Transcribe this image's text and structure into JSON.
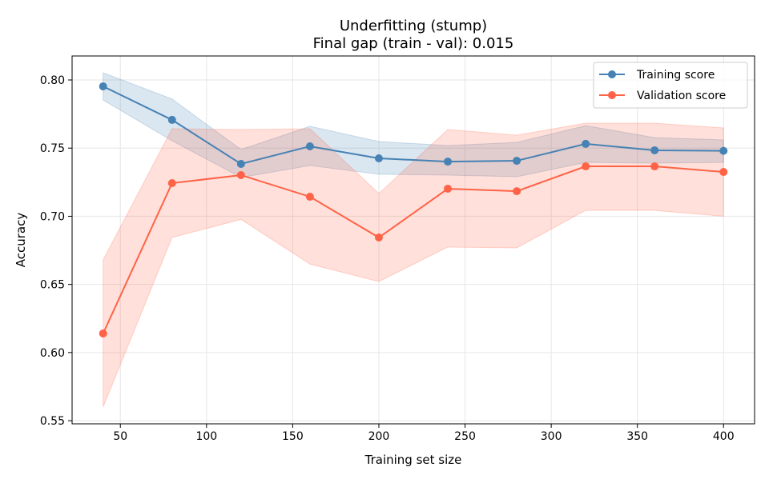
{
  "chart_data": {
    "type": "line",
    "title": "Underfitting (stump)",
    "subtitle": "Final gap (train - val): 0.015",
    "xlabel": "Training set size",
    "ylabel": "Accuracy",
    "xlim": [
      22,
      418
    ],
    "ylim": [
      0.5477,
      0.8176
    ],
    "xticks": [
      50,
      100,
      150,
      200,
      250,
      300,
      350,
      400
    ],
    "yticks": [
      0.55,
      0.6,
      0.65,
      0.7,
      0.75,
      0.8
    ],
    "ytick_labels": [
      "0.55",
      "0.60",
      "0.65",
      "0.70",
      "0.75",
      "0.80"
    ],
    "grid": true,
    "legend_placement": "top-right",
    "x": [
      40,
      80,
      120,
      160,
      200,
      240,
      280,
      320,
      360,
      400
    ],
    "series": [
      {
        "name": "Training score",
        "color": "#4682b4",
        "values": [
          0.7953,
          0.7707,
          0.7384,
          0.7513,
          0.7425,
          0.7401,
          0.7407,
          0.7531,
          0.7484,
          0.748
        ],
        "band_upper": [
          0.8053,
          0.786,
          0.749,
          0.766,
          0.7548,
          0.7519,
          0.7542,
          0.7665,
          0.7577,
          0.756
        ],
        "band_lower": [
          0.7853,
          0.7554,
          0.7284,
          0.7372,
          0.7308,
          0.7302,
          0.729,
          0.7395,
          0.739,
          0.7395
        ]
      },
      {
        "name": "Validation score",
        "color": "#ff6347",
        "values": [
          0.614,
          0.7243,
          0.7302,
          0.7143,
          0.6844,
          0.7202,
          0.7184,
          0.7366,
          0.7366,
          0.7325
        ],
        "band_upper": [
          0.668,
          0.7642,
          0.7636,
          0.7642,
          0.7167,
          0.7636,
          0.7595,
          0.7683,
          0.7683,
          0.7648
        ],
        "band_lower": [
          0.56,
          0.6844,
          0.6977,
          0.6649,
          0.6521,
          0.6774,
          0.6768,
          0.7043,
          0.7043,
          0.7
        ]
      }
    ]
  }
}
